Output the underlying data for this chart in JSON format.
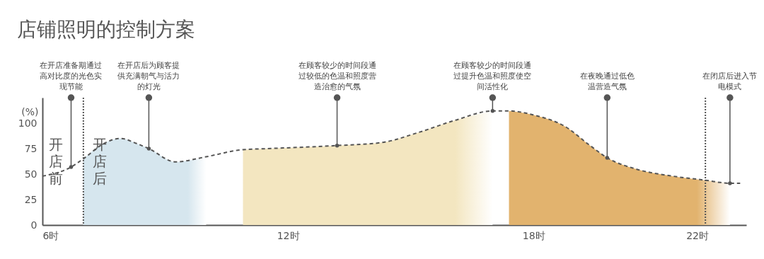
{
  "chart_data": {
    "type": "line",
    "title": "店铺照明的控制方案",
    "ylabel": "(%)",
    "x": [
      6,
      6.7,
      7,
      7.5,
      7.9,
      8.3,
      8.6,
      9.25,
      10,
      10.9,
      11.5,
      13.2,
      14.3,
      15.2,
      16.1,
      17,
      17.4,
      18,
      18.8,
      19.35,
      19.8,
      20.5,
      21.4,
      22.2,
      22.8,
      23.05
    ],
    "series": [
      {
        "type": "area",
        "color": "#d6e6ee",
        "x": [
          7,
          7.5,
          7.9,
          8.3,
          8.6,
          9.25,
          10
        ],
        "values": [
          65,
          80,
          85,
          80,
          75,
          62,
          67
        ]
      },
      {
        "type": "area",
        "color": "#f3e6c0",
        "x": [
          10.9,
          11.5,
          13.2,
          14.3,
          15.2,
          16.1,
          17
        ],
        "values": [
          74,
          75,
          78,
          81,
          91,
          103,
          112
        ]
      },
      {
        "type": "area",
        "color": "#e2b36e",
        "x": [
          17.4,
          18,
          18.8,
          19.35,
          19.8,
          20.5,
          21.4,
          22.2,
          22.8
        ],
        "values": [
          112,
          108,
          96,
          79,
          66,
          55,
          48,
          44,
          41
        ]
      },
      {
        "color": "#555555",
        "values": [
          48,
          57,
          65,
          80,
          85,
          80,
          75,
          62,
          67,
          74,
          75,
          78,
          81,
          91,
          103,
          112,
          112,
          108,
          96,
          79,
          66,
          55,
          48,
          44,
          41,
          41
        ]
      }
    ],
    "xlim": [
      6,
      23.2
    ],
    "xticks": [
      {
        "value": 6,
        "label": "6时"
      },
      {
        "value": 12,
        "label": "12时"
      },
      {
        "value": 18,
        "label": "18时"
      },
      {
        "value": 22,
        "label": "22时"
      }
    ],
    "ylim": [
      0,
      125
    ],
    "yticks": [
      0,
      25,
      50,
      75,
      100
    ],
    "line_style": "dashed",
    "marker": "none",
    "ref_lines": [
      {
        "axis": "x",
        "value": 7,
        "line_style": "dotted",
        "color": "#555555"
      },
      {
        "axis": "x",
        "value": 22.2,
        "line_style": "dotted",
        "color": "#555555"
      }
    ],
    "annotations": [
      "开店前",
      "开店后",
      {
        "text": "在开店准备期通过高对比度的光色实现节能",
        "x": 6.7,
        "y": 57
      },
      {
        "text": "在开店后为顾客提供充满朝气与活力的灯光",
        "x": 8.6,
        "y": 75
      },
      {
        "text": "在顾客较少的时间段通过较低的色温和照度营造治愈的气氛",
        "x": 13.2,
        "y": 78
      },
      {
        "text": "在顾客较少的时间段通过提升色温和照度使空间活性化",
        "x": 17,
        "y": 112
      },
      {
        "text": "在夜晚通过低色温营造气氛",
        "x": 19.8,
        "y": 66
      },
      {
        "text": "在闭店后进入节电模式",
        "x": 22.8,
        "y": 41
      }
    ]
  }
}
